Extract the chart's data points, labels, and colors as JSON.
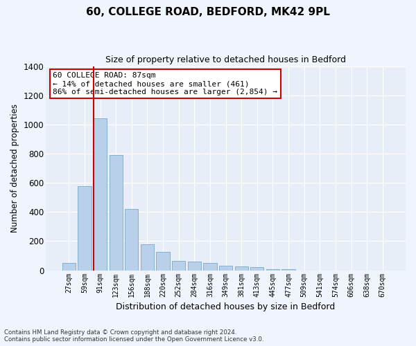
{
  "title": "60, COLLEGE ROAD, BEDFORD, MK42 9PL",
  "subtitle": "Size of property relative to detached houses in Bedford",
  "xlabel": "Distribution of detached houses by size in Bedford",
  "ylabel": "Number of detached properties",
  "bar_color": "#b8d0ea",
  "bar_edge_color": "#7aaac8",
  "background_color": "#e8eef8",
  "grid_color": "#ffffff",
  "fig_background": "#f0f4fc",
  "categories": [
    "27sqm",
    "59sqm",
    "91sqm",
    "123sqm",
    "156sqm",
    "188sqm",
    "220sqm",
    "252sqm",
    "284sqm",
    "316sqm",
    "349sqm",
    "381sqm",
    "413sqm",
    "445sqm",
    "477sqm",
    "509sqm",
    "541sqm",
    "574sqm",
    "606sqm",
    "638sqm",
    "670sqm"
  ],
  "values": [
    50,
    575,
    1040,
    790,
    420,
    180,
    125,
    65,
    60,
    50,
    30,
    25,
    20,
    10,
    8,
    0,
    0,
    0,
    0,
    0,
    0
  ],
  "ylim": [
    0,
    1400
  ],
  "yticks": [
    0,
    200,
    400,
    600,
    800,
    1000,
    1200,
    1400
  ],
  "property_line_color": "#cc0000",
  "annotation_text": "60 COLLEGE ROAD: 87sqm\n← 14% of detached houses are smaller (461)\n86% of semi-detached houses are larger (2,854) →",
  "annotation_box_color": "#ffffff",
  "annotation_box_edge_color": "#cc0000",
  "footer_line1": "Contains HM Land Registry data © Crown copyright and database right 2024.",
  "footer_line2": "Contains public sector information licensed under the Open Government Licence v3.0."
}
